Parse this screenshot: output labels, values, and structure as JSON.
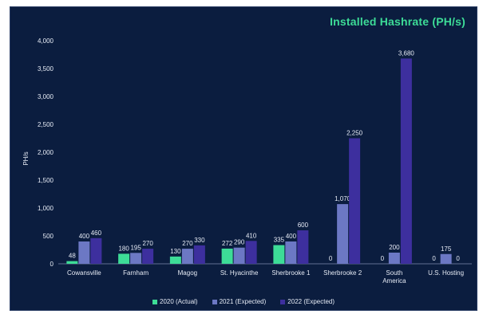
{
  "chart_data": {
    "type": "bar",
    "title": "Installed Hashrate (PH/s)",
    "ylabel": "PH/s",
    "xlabel": "",
    "ylim": [
      0,
      4000
    ],
    "yticks": [
      "0",
      "500",
      "1,000",
      "1,500",
      "2,000",
      "2,500",
      "3,000",
      "3,500",
      "4,000"
    ],
    "categories": [
      [
        "Cowansville"
      ],
      [
        "Farnham"
      ],
      [
        "Magog"
      ],
      [
        "St. Hyacinthe"
      ],
      [
        "Sherbrooke 1"
      ],
      [
        "Sherbrooke 2"
      ],
      [
        "South",
        "America"
      ],
      [
        "U.S. Hosting"
      ]
    ],
    "series": [
      {
        "name": "2020 (Actual)",
        "color": "#3ddc97",
        "values": [
          48,
          180,
          130,
          272,
          335,
          0,
          0,
          0
        ],
        "labels": [
          "48",
          "180",
          "130",
          "272",
          "335",
          "0",
          "0",
          "0"
        ]
      },
      {
        "name": "2021 (Expected)",
        "color": "#6c78c4",
        "values": [
          400,
          195,
          270,
          290,
          400,
          1070,
          200,
          175
        ],
        "labels": [
          "400",
          "195",
          "270",
          "290",
          "400",
          "1,070",
          "200",
          "175"
        ]
      },
      {
        "name": "2022 (Expected)",
        "color": "#3d2f9e",
        "values": [
          460,
          270,
          330,
          410,
          600,
          2250,
          3680,
          0
        ],
        "labels": [
          "460",
          "270",
          "330",
          "410",
          "600",
          "2,250",
          "3,680",
          "0"
        ]
      }
    ],
    "legend_position": "bottom",
    "grid": false
  }
}
